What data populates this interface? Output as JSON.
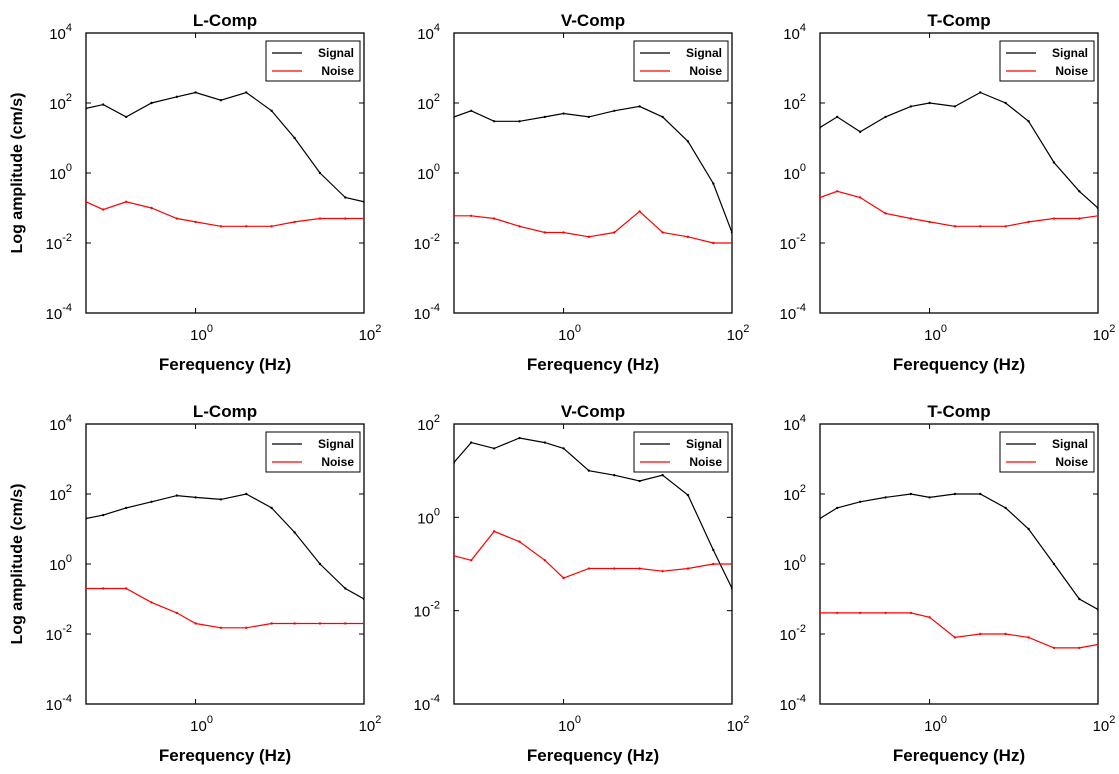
{
  "figure": {
    "ylabel": "Log amplitude (cm/s)"
  },
  "chart_data": [
    {
      "type": "line",
      "title": "L-Comp",
      "xlabel": "Ferequency (Hz)",
      "ylabel": "Log amplitude (cm/s)",
      "x_scale": "log",
      "y_scale": "log",
      "xlim": [
        0.05,
        100
      ],
      "ylim": [
        0.0001,
        10000
      ],
      "xticks": [
        "10^0",
        "10^2"
      ],
      "yticks": [
        "10^-4",
        "10^-2",
        "10^0",
        "10^2",
        "10^4"
      ],
      "legend": "top-right",
      "series": [
        {
          "name": "Signal",
          "color": "#000000",
          "x": [
            0.05,
            0.08,
            0.15,
            0.3,
            0.6,
            1,
            2,
            4,
            8,
            15,
            30,
            60,
            100
          ],
          "y": [
            70,
            90,
            40,
            100,
            150,
            200,
            120,
            200,
            60,
            10,
            1,
            0.2,
            0.15
          ]
        },
        {
          "name": "Noise",
          "color": "#ff0000",
          "x": [
            0.05,
            0.08,
            0.15,
            0.3,
            0.6,
            1,
            2,
            4,
            8,
            15,
            30,
            60,
            100
          ],
          "y": [
            0.15,
            0.09,
            0.15,
            0.1,
            0.05,
            0.04,
            0.03,
            0.03,
            0.03,
            0.04,
            0.05,
            0.05,
            0.05
          ]
        }
      ]
    },
    {
      "type": "line",
      "title": "V-Comp",
      "xlabel": "Ferequency (Hz)",
      "ylabel": "",
      "x_scale": "log",
      "y_scale": "log",
      "xlim": [
        0.05,
        100
      ],
      "ylim": [
        0.0001,
        10000
      ],
      "xticks": [
        "10^0",
        "10^2"
      ],
      "yticks": [
        "10^-4",
        "10^-2",
        "10^0",
        "10^2",
        "10^4"
      ],
      "legend": "top-right",
      "series": [
        {
          "name": "Signal",
          "color": "#000000",
          "x": [
            0.05,
            0.08,
            0.15,
            0.3,
            0.6,
            1,
            2,
            4,
            8,
            15,
            30,
            60,
            100
          ],
          "y": [
            40,
            60,
            30,
            30,
            40,
            50,
            40,
            60,
            80,
            40,
            8,
            0.5,
            0.02
          ]
        },
        {
          "name": "Noise",
          "color": "#ff0000",
          "x": [
            0.05,
            0.08,
            0.15,
            0.3,
            0.6,
            1,
            2,
            4,
            8,
            15,
            30,
            60,
            100
          ],
          "y": [
            0.06,
            0.06,
            0.05,
            0.03,
            0.02,
            0.02,
            0.015,
            0.02,
            0.08,
            0.02,
            0.015,
            0.01,
            0.01
          ]
        }
      ]
    },
    {
      "type": "line",
      "title": "T-Comp",
      "xlabel": "Ferequency (Hz)",
      "ylabel": "",
      "x_scale": "log",
      "y_scale": "log",
      "xlim": [
        0.05,
        100
      ],
      "ylim": [
        0.0001,
        10000
      ],
      "xticks": [
        "10^0",
        "10^2"
      ],
      "yticks": [
        "10^-4",
        "10^-2",
        "10^0",
        "10^2",
        "10^4"
      ],
      "legend": "top-right",
      "series": [
        {
          "name": "Signal",
          "color": "#000000",
          "x": [
            0.05,
            0.08,
            0.15,
            0.3,
            0.6,
            1,
            2,
            4,
            8,
            15,
            30,
            60,
            100
          ],
          "y": [
            20,
            40,
            15,
            40,
            80,
            100,
            80,
            200,
            100,
            30,
            2,
            0.3,
            0.1
          ]
        },
        {
          "name": "Noise",
          "color": "#ff0000",
          "x": [
            0.05,
            0.08,
            0.15,
            0.3,
            0.6,
            1,
            2,
            4,
            8,
            15,
            30,
            60,
            100
          ],
          "y": [
            0.2,
            0.3,
            0.2,
            0.07,
            0.05,
            0.04,
            0.03,
            0.03,
            0.03,
            0.04,
            0.05,
            0.05,
            0.06
          ]
        }
      ]
    },
    {
      "type": "line",
      "title": "L-Comp",
      "xlabel": "Ferequency (Hz)",
      "ylabel": "Log amplitude (cm/s)",
      "x_scale": "log",
      "y_scale": "log",
      "xlim": [
        0.05,
        100
      ],
      "ylim": [
        0.0001,
        10000
      ],
      "xticks": [
        "10^0",
        "10^2"
      ],
      "yticks": [
        "10^-4",
        "10^-2",
        "10^0",
        "10^2",
        "10^4"
      ],
      "legend": "top-right",
      "series": [
        {
          "name": "Signal",
          "color": "#000000",
          "x": [
            0.05,
            0.08,
            0.15,
            0.3,
            0.6,
            1,
            2,
            4,
            8,
            15,
            30,
            60,
            100
          ],
          "y": [
            20,
            25,
            40,
            60,
            90,
            80,
            70,
            100,
            40,
            8,
            1,
            0.2,
            0.1
          ]
        },
        {
          "name": "Noise",
          "color": "#ff0000",
          "x": [
            0.05,
            0.08,
            0.15,
            0.3,
            0.6,
            1,
            2,
            4,
            8,
            15,
            30,
            60,
            100
          ],
          "y": [
            0.2,
            0.2,
            0.2,
            0.08,
            0.04,
            0.02,
            0.015,
            0.015,
            0.02,
            0.02,
            0.02,
            0.02,
            0.02
          ]
        }
      ]
    },
    {
      "type": "line",
      "title": "V-Comp",
      "xlabel": "Ferequency (Hz)",
      "ylabel": "",
      "x_scale": "log",
      "y_scale": "log",
      "xlim": [
        0.05,
        100
      ],
      "ylim": [
        0.0001,
        100
      ],
      "xticks": [
        "10^0",
        "10^2"
      ],
      "yticks": [
        "10^-4",
        "10^-2",
        "10^0",
        "10^2"
      ],
      "legend": "top-right",
      "series": [
        {
          "name": "Signal",
          "color": "#000000",
          "x": [
            0.05,
            0.08,
            0.15,
            0.3,
            0.6,
            1,
            2,
            4,
            8,
            15,
            30,
            60,
            100
          ],
          "y": [
            15,
            40,
            30,
            50,
            40,
            30,
            10,
            8,
            6,
            8,
            3,
            0.2,
            0.03
          ]
        },
        {
          "name": "Noise",
          "color": "#ff0000",
          "x": [
            0.05,
            0.08,
            0.15,
            0.3,
            0.6,
            1,
            2,
            4,
            8,
            15,
            30,
            60,
            100
          ],
          "y": [
            0.15,
            0.12,
            0.5,
            0.3,
            0.12,
            0.05,
            0.08,
            0.08,
            0.08,
            0.07,
            0.08,
            0.1,
            0.1
          ]
        }
      ]
    },
    {
      "type": "line",
      "title": "T-Comp",
      "xlabel": "Ferequency (Hz)",
      "ylabel": "",
      "x_scale": "log",
      "y_scale": "log",
      "xlim": [
        0.05,
        100
      ],
      "ylim": [
        0.0001,
        10000
      ],
      "xticks": [
        "10^0",
        "10^2"
      ],
      "yticks": [
        "10^-4",
        "10^-2",
        "10^0",
        "10^2",
        "10^4"
      ],
      "legend": "top-right",
      "series": [
        {
          "name": "Signal",
          "color": "#000000",
          "x": [
            0.05,
            0.08,
            0.15,
            0.3,
            0.6,
            1,
            2,
            4,
            8,
            15,
            30,
            60,
            100
          ],
          "y": [
            20,
            40,
            60,
            80,
            100,
            80,
            100,
            100,
            40,
            10,
            1,
            0.1,
            0.05
          ]
        },
        {
          "name": "Noise",
          "color": "#ff0000",
          "x": [
            0.05,
            0.08,
            0.15,
            0.3,
            0.6,
            1,
            2,
            4,
            8,
            15,
            30,
            60,
            100
          ],
          "y": [
            0.04,
            0.04,
            0.04,
            0.04,
            0.04,
            0.03,
            0.008,
            0.01,
            0.01,
            0.008,
            0.004,
            0.004,
            0.005
          ]
        }
      ]
    }
  ]
}
